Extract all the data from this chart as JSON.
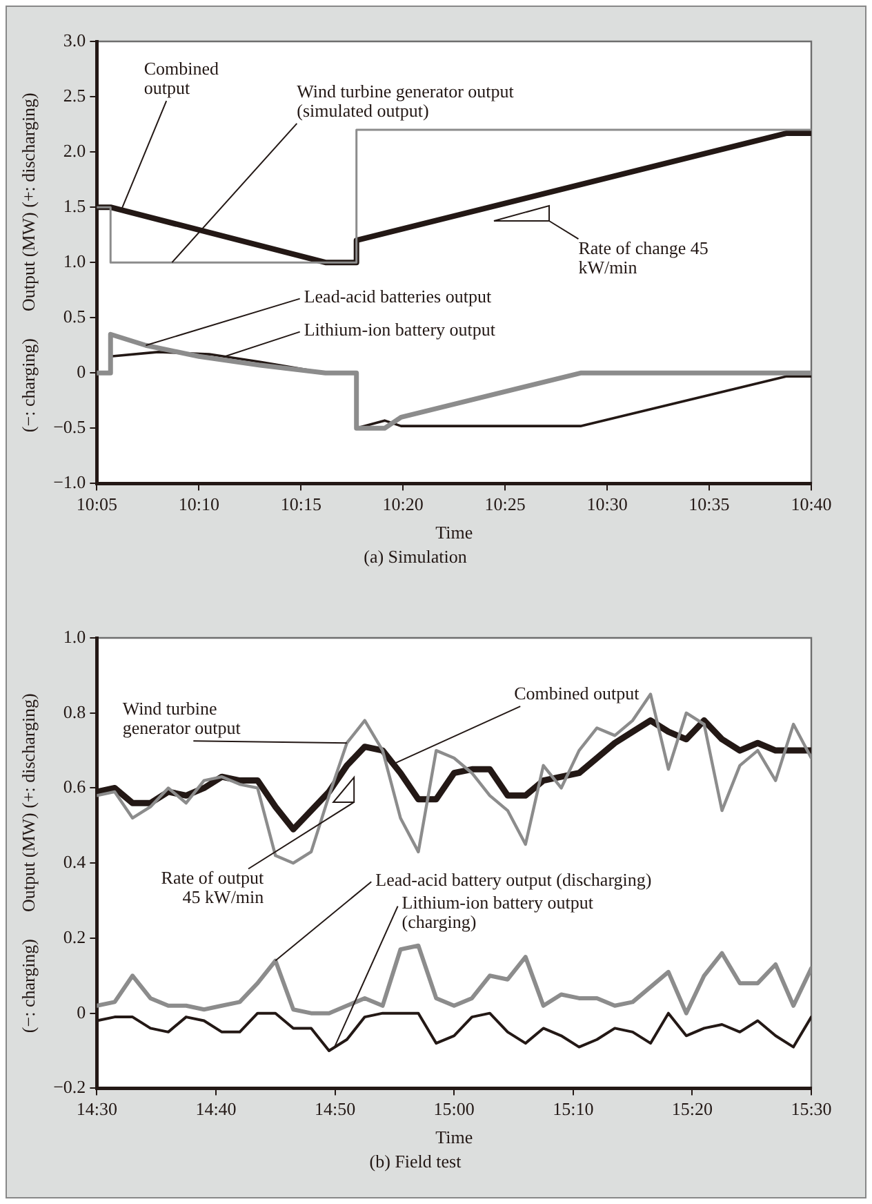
{
  "chart_data": [
    {
      "type": "line",
      "title": "(a) Simulation",
      "xlabel": "Time",
      "ylabel": "(−: charging)      Output (MW) (+: discharging)",
      "xlim": [
        10.0833,
        10.6667
      ],
      "xticks": [
        {
          "value": 10.0833,
          "label": "10:05"
        },
        {
          "value": 10.1667,
          "label": "10:10"
        },
        {
          "value": 10.25,
          "label": "10:15"
        },
        {
          "value": 10.3333,
          "label": "10:20"
        },
        {
          "value": 10.4167,
          "label": "10:25"
        },
        {
          "value": 10.5,
          "label": "10:30"
        },
        {
          "value": 10.5833,
          "label": "10:35"
        },
        {
          "value": 10.6667,
          "label": "10:40"
        }
      ],
      "ylim": [
        -1,
        3
      ],
      "yticks": [
        {
          "value": -1,
          "label": "−1.0"
        },
        {
          "value": -0.5,
          "label": "−0.5"
        },
        0,
        {
          "value": 0.5,
          "label": "0.5"
        },
        {
          "value": 1,
          "label": "1.0"
        },
        {
          "value": 1.5,
          "label": "1.5"
        },
        {
          "value": 2,
          "label": "2.0"
        },
        {
          "value": 2.5,
          "label": "2.5"
        },
        {
          "value": 3,
          "label": "3.0"
        }
      ],
      "grid": false,
      "legend": false,
      "marker": "none",
      "line_style": "solid",
      "series": [
        {
          "name": "Wind turbine generator output (simulated output)",
          "color": "#8c8c8c",
          "x": [
            10.0833,
            10.0945,
            10.0945,
            10.2953,
            10.2953,
            10.6667
          ],
          "values": [
            1.5,
            1.5,
            1.0,
            1.0,
            2.2,
            2.2
          ]
        },
        {
          "name": "Combined output",
          "color": "#231815",
          "x": [
            10.0833,
            10.0945,
            10.27,
            10.2953,
            10.2953,
            10.6467,
            10.6667
          ],
          "values": [
            1.5,
            1.5,
            1.0,
            1.0,
            1.2,
            2.17,
            2.17
          ]
        },
        {
          "name": "Lead-acid batteries output",
          "color": "#8c8c8c",
          "x": [
            10.0833,
            10.0945,
            10.0945,
            10.1233,
            10.1667,
            10.2167,
            10.27,
            10.2953,
            10.2953,
            10.3183,
            10.3317,
            10.4783,
            10.6667
          ],
          "values": [
            0,
            0,
            0.35,
            0.25,
            0.15,
            0.07,
            0,
            0,
            -0.5,
            -0.5,
            -0.4,
            0,
            0
          ]
        },
        {
          "name": "Lithium-ion battery output",
          "color": "#231815",
          "x": [
            10.0833,
            10.0945,
            10.0945,
            10.1333,
            10.175,
            10.2167,
            10.27,
            10.2953,
            10.2953,
            10.3183,
            10.3317,
            10.4783,
            10.6467,
            10.6667
          ],
          "values": [
            0,
            0,
            0.15,
            0.19,
            0.17,
            0.1,
            0,
            0,
            -0.5,
            -0.43,
            -0.48,
            -0.48,
            -0.03,
            -0.03
          ]
        }
      ],
      "annotations": [
        "Rate of change 45 kW/min"
      ]
    },
    {
      "type": "line",
      "title": "(b) Field test",
      "xlabel": "Time",
      "ylabel": "(−: charging)      Output (MW) (+: discharging)",
      "xlim": [
        14.5,
        15.5
      ],
      "xticks": [
        {
          "value": 14.5,
          "label": "14:30"
        },
        {
          "value": 14.6667,
          "label": "14:40"
        },
        {
          "value": 14.8333,
          "label": "14:50"
        },
        {
          "value": 15,
          "label": "15:00"
        },
        {
          "value": 15.1667,
          "label": "15:10"
        },
        {
          "value": 15.3333,
          "label": "15:20"
        },
        {
          "value": 15.5,
          "label": "15:30"
        }
      ],
      "ylim": [
        -0.2,
        1
      ],
      "yticks": [
        {
          "value": -0.2,
          "label": "−0.2"
        },
        0,
        {
          "value": 0.2,
          "label": "0.2"
        },
        {
          "value": 0.4,
          "label": "0.4"
        },
        {
          "value": 0.6,
          "label": "0.6"
        },
        {
          "value": 0.8,
          "label": "0.8"
        },
        {
          "value": 1,
          "label": "1.0"
        }
      ],
      "grid": false,
      "legend": false,
      "marker": "none",
      "line_style": "solid",
      "x": [
        14.5,
        14.525,
        14.55,
        14.575,
        14.6,
        14.625,
        14.65,
        14.675,
        14.7,
        14.725,
        14.75,
        14.775,
        14.8,
        14.825,
        14.85,
        14.875,
        14.9,
        14.925,
        14.95,
        14.975,
        15,
        15.025,
        15.05,
        15.075,
        15.1,
        15.125,
        15.15,
        15.175,
        15.2,
        15.225,
        15.25,
        15.275,
        15.3,
        15.325,
        15.35,
        15.375,
        15.4,
        15.425,
        15.45,
        15.475,
        15.5
      ],
      "series": [
        {
          "name": "Wind turbine generator output",
          "color": "#8c8c8c",
          "values": [
            0.58,
            0.59,
            0.52,
            0.55,
            0.6,
            0.56,
            0.62,
            0.63,
            0.61,
            0.6,
            0.42,
            0.4,
            0.43,
            0.58,
            0.72,
            0.78,
            0.7,
            0.52,
            0.43,
            0.7,
            0.68,
            0.64,
            0.58,
            0.54,
            0.45,
            0.66,
            0.6,
            0.7,
            0.76,
            0.74,
            0.78,
            0.85,
            0.65,
            0.8,
            0.77,
            0.54,
            0.66,
            0.7,
            0.62,
            0.77,
            0.68
          ]
        },
        {
          "name": "Combined output",
          "color": "#231815",
          "values": [
            0.59,
            0.6,
            0.56,
            0.56,
            0.59,
            0.58,
            0.6,
            0.63,
            0.62,
            0.62,
            0.55,
            0.49,
            0.54,
            0.59,
            0.66,
            0.71,
            0.7,
            0.64,
            0.57,
            0.57,
            0.64,
            0.65,
            0.65,
            0.58,
            0.58,
            0.62,
            0.63,
            0.64,
            0.68,
            0.72,
            0.75,
            0.78,
            0.75,
            0.73,
            0.78,
            0.73,
            0.7,
            0.72,
            0.7,
            0.7,
            0.7
          ]
        },
        {
          "name": "Lead-acid battery output (discharging)",
          "color": "#8c8c8c",
          "values": [
            0.02,
            0.03,
            0.1,
            0.04,
            0.02,
            0.02,
            0.01,
            0.02,
            0.03,
            0.08,
            0.14,
            0.01,
            0,
            0,
            0.02,
            0.04,
            0.02,
            0.17,
            0.18,
            0.04,
            0.02,
            0.04,
            0.1,
            0.09,
            0.15,
            0.02,
            0.05,
            0.04,
            0.04,
            0.02,
            0.03,
            0.07,
            0.11,
            0,
            0.1,
            0.16,
            0.08,
            0.08,
            0.13,
            0.02,
            0.12
          ]
        },
        {
          "name": "Lithium-ion battery output (charging)",
          "color": "#231815",
          "values": [
            -0.02,
            -0.01,
            -0.01,
            -0.04,
            -0.05,
            -0.01,
            -0.02,
            -0.05,
            -0.05,
            0,
            0,
            -0.04,
            -0.04,
            -0.1,
            -0.07,
            -0.01,
            0,
            0,
            0,
            -0.08,
            -0.06,
            -0.01,
            0,
            -0.05,
            -0.08,
            -0.04,
            -0.06,
            -0.09,
            -0.07,
            -0.04,
            -0.05,
            -0.08,
            0,
            -0.06,
            -0.04,
            -0.03,
            -0.05,
            -0.02,
            -0.06,
            -0.09,
            -0.01
          ]
        }
      ],
      "annotations": [
        "Rate of output 45 kW/min"
      ]
    }
  ]
}
